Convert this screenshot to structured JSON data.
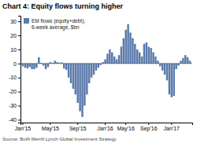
{
  "chart_data": {
    "type": "bar",
    "title": "Chart 4: Equity flows turning higher",
    "source": "Source: BofA Merrill Lynch Global Investment Strategy",
    "categories": [
      "Jan'15",
      null,
      null,
      null,
      null,
      null,
      null,
      null,
      null,
      null,
      null,
      null,
      "May'15",
      null,
      null,
      null,
      null,
      null,
      null,
      null,
      null,
      null,
      null,
      null,
      "Sep'15",
      null,
      null,
      null,
      null,
      null,
      null,
      null,
      null,
      null,
      null,
      null,
      "Jan'16",
      null,
      null,
      null,
      null,
      null,
      null,
      null,
      null,
      "May'16",
      null,
      null,
      null,
      null,
      null,
      null,
      null,
      null,
      null,
      "Sep'16",
      null,
      null,
      null,
      null,
      null,
      null,
      null,
      null,
      null,
      "Jan'17",
      null,
      null,
      null,
      null,
      null,
      null,
      null,
      null
    ],
    "series": [
      {
        "name": "EM flows (equity+debt),\n6-week average, $bn",
        "color": "#5a7aab",
        "values": [
          -2.0,
          -3.0,
          -3.5,
          -2.5,
          -4.0,
          -4.0,
          -3.0,
          4.5,
          0.5,
          -1.5,
          -4.0,
          -2.5,
          1.0,
          0.5,
          2.0,
          1.0,
          0.5,
          0.8,
          -3.5,
          -4.5,
          -10.0,
          -14.0,
          -18.0,
          -22.0,
          -28.0,
          -34.0,
          -38.0,
          -30.0,
          -22.0,
          -14.0,
          -10.0,
          -8.0,
          -5.0,
          -3.0,
          -1.0,
          1.0,
          3.0,
          7.0,
          10.0,
          8.0,
          5.0,
          3.0,
          6.0,
          12.0,
          18.0,
          24.0,
          28.0,
          22.0,
          18.0,
          14.0,
          10.0,
          8.0,
          5.0,
          14.0,
          15.0,
          12.0,
          11.0,
          8.0,
          5.0,
          2.0,
          -2.0,
          -5.0,
          -8.0,
          -12.0,
          -22.0,
          -24.0,
          -23.0,
          -4.0,
          -1.5,
          2.0,
          4.0,
          6.0,
          4.5,
          2.0
        ]
      }
    ],
    "ylim": [
      -42,
      34
    ],
    "yticks": [
      -40,
      -30,
      -20,
      -10,
      0,
      10,
      20,
      30
    ],
    "grid": false,
    "legend": "upper left"
  }
}
